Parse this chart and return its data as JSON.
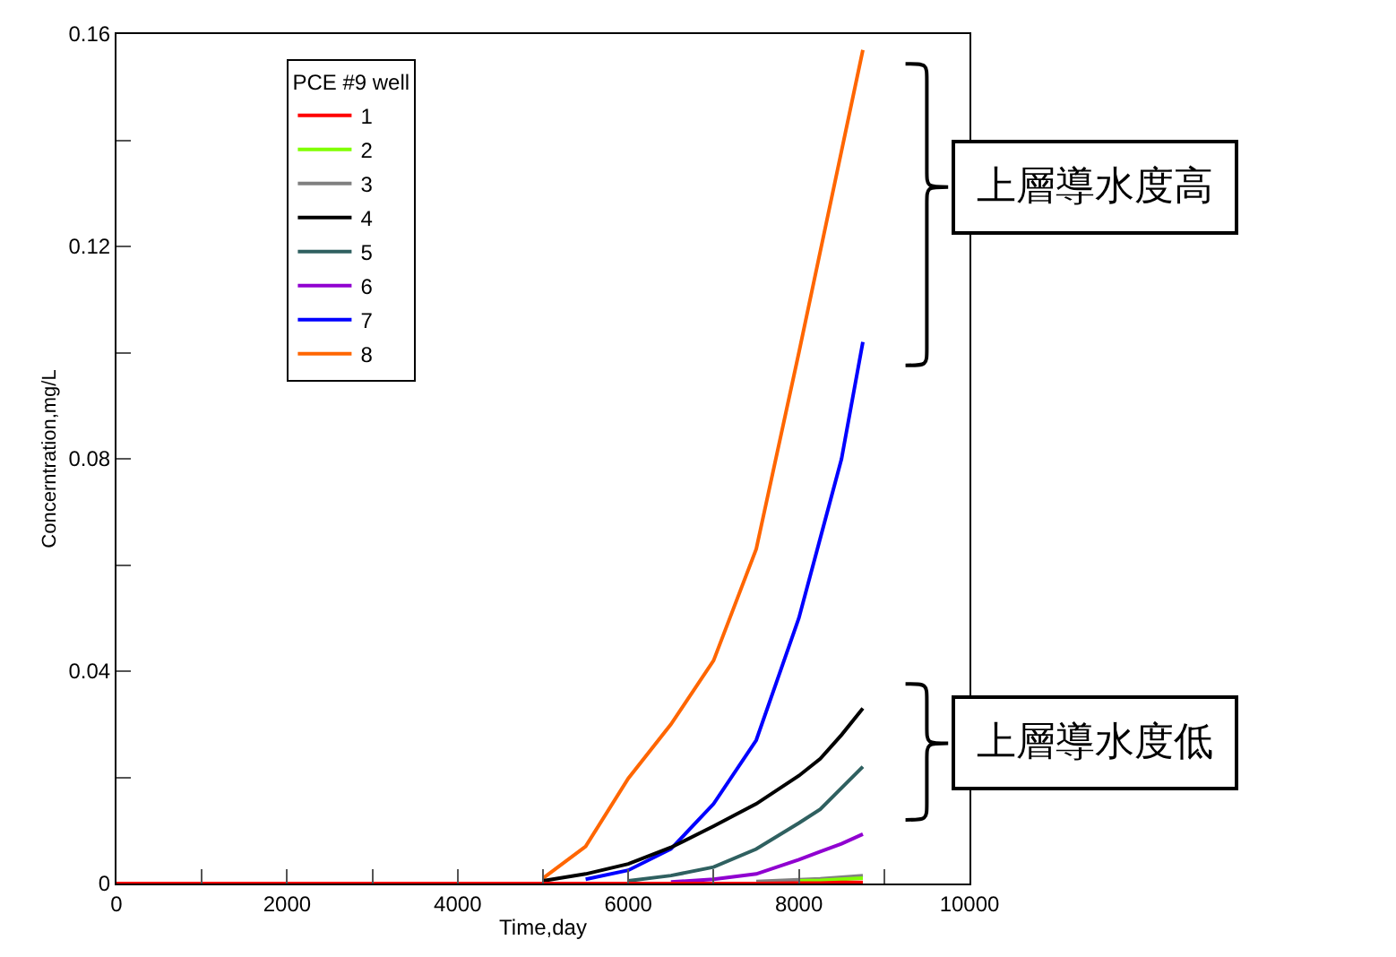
{
  "chart_data": {
    "type": "line",
    "xlabel": "Time,day",
    "ylabel": "Concerntration,mg/L",
    "legend_title": "PCE #9 well",
    "legend": "top left",
    "marker": "none",
    "line_style": "solid",
    "x": [
      0,
      1000,
      2000,
      3000,
      4000,
      4500,
      5000,
      5500,
      6000,
      6500,
      7000,
      7500,
      8000,
      8250,
      8500,
      8750
    ],
    "xlim": [
      0,
      10000
    ],
    "xticks": [
      0,
      {
        "value": 1000,
        "label": null
      },
      2000,
      {
        "value": 3000,
        "label": null
      },
      4000,
      {
        "value": 5000,
        "label": null
      },
      6000,
      {
        "value": 7000,
        "label": null
      },
      8000,
      {
        "value": 9000,
        "label": null
      },
      10000
    ],
    "ylim": [
      0,
      0.16
    ],
    "yticks": [
      0,
      {
        "value": 0.02,
        "label": null
      },
      0.04,
      {
        "value": 0.06,
        "label": null
      },
      0.08,
      {
        "value": 0.1,
        "label": null
      },
      0.12,
      {
        "value": 0.14,
        "label": null
      },
      0.16
    ],
    "series": [
      {
        "name": "1",
        "color": "#ff0000",
        "values": [
          0,
          0,
          0,
          0,
          0,
          0,
          0,
          0,
          0,
          0,
          0,
          0,
          0.0001,
          0.0001,
          0.0002,
          0.0002
        ]
      },
      {
        "name": "2",
        "color": "#80ff00",
        "values": [
          null,
          null,
          null,
          null,
          null,
          null,
          null,
          null,
          null,
          null,
          null,
          null,
          0.0005,
          0.0006,
          0.0008,
          0.001
        ]
      },
      {
        "name": "3",
        "color": "#808080",
        "values": [
          null,
          null,
          null,
          null,
          null,
          null,
          null,
          null,
          null,
          null,
          null,
          0.0004,
          0.0007,
          0.0009,
          0.0012,
          0.0015
        ]
      },
      {
        "name": "4",
        "color": "#000000",
        "values": [
          null,
          null,
          null,
          null,
          null,
          null,
          0.0005,
          0.0018,
          0.0037,
          0.0068,
          0.0108,
          0.015,
          0.0203,
          0.0235,
          0.028,
          0.033
        ]
      },
      {
        "name": "5",
        "color": "#2f6060",
        "values": [
          null,
          null,
          null,
          null,
          null,
          null,
          null,
          null,
          0.0005,
          0.0015,
          0.0031,
          0.0065,
          0.0114,
          0.014,
          0.018,
          0.022
        ]
      },
      {
        "name": "6",
        "color": "#9000d0",
        "values": [
          null,
          null,
          null,
          null,
          null,
          null,
          null,
          null,
          null,
          0.0003,
          0.0008,
          0.0018,
          0.0045,
          0.006,
          0.0075,
          0.0093
        ]
      },
      {
        "name": "7",
        "color": "#0000ff",
        "values": [
          null,
          null,
          null,
          null,
          null,
          null,
          null,
          0.0008,
          0.0025,
          0.0065,
          0.015,
          0.027,
          0.05,
          0.065,
          0.08,
          0.102
        ]
      },
      {
        "name": "8",
        "color": "#ff6600",
        "values": [
          null,
          null,
          null,
          null,
          null,
          null,
          0.001,
          0.007,
          0.0198,
          0.03,
          0.042,
          0.063,
          0.1,
          0.119,
          0.138,
          0.157
        ]
      }
    ],
    "annotations": [
      "上層導水度高",
      "上層導水度低"
    ]
  }
}
